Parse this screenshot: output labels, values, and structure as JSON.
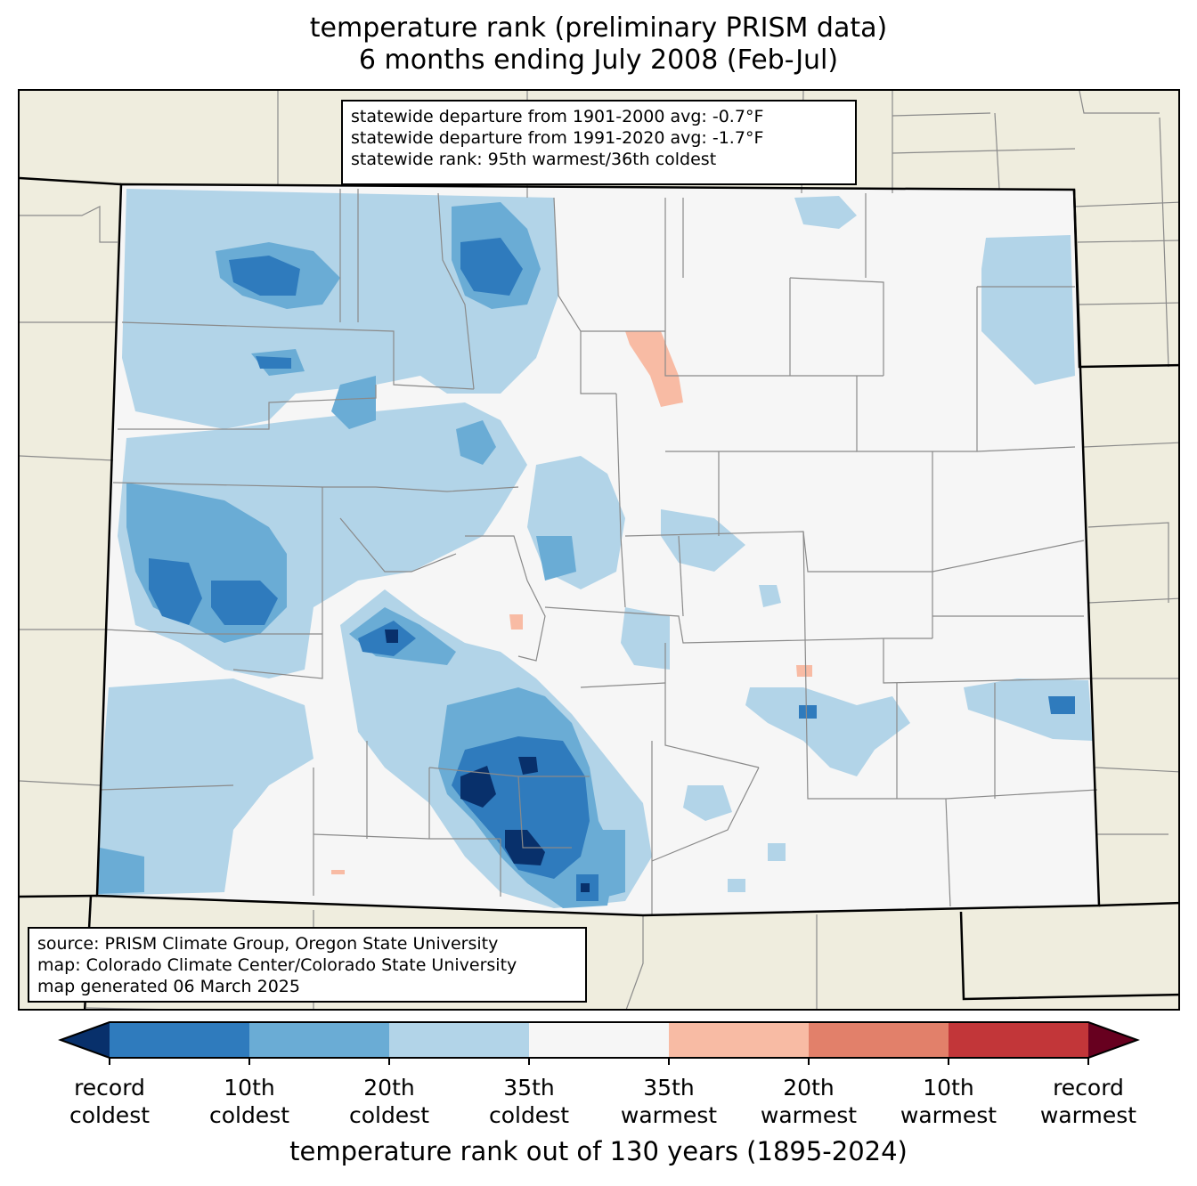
{
  "title": {
    "line1": "temperature rank (preliminary PRISM data)",
    "line2": "6 months ending July 2008 (Feb-Jul)"
  },
  "stats": {
    "line1": "statewide departure from 1901-2000 avg: -0.7°F",
    "line2": "statewide departure from 1991-2020 avg: -1.7°F",
    "line3": "statewide rank: 95th warmest/36th coldest"
  },
  "source": {
    "line1": "source: PRISM Climate Group, Oregon State University",
    "line2": "map: Colorado Climate Center/Colorado State University",
    "line3": "map generated 06 March 2025"
  },
  "colorbar": {
    "label": "temperature rank out of 130 years (1895-2024)",
    "colors": [
      "#08306b",
      "#2f7bbd",
      "#6aacd5",
      "#b2d4e8",
      "#f6f6f6",
      "#f8bba4",
      "#e2806a",
      "#c23639",
      "#67001f"
    ],
    "ticks": [
      {
        "l1": "record",
        "l2": "coldest"
      },
      {
        "l1": "10th",
        "l2": "coldest"
      },
      {
        "l1": "20th",
        "l2": "coldest"
      },
      {
        "l1": "35th",
        "l2": "coldest"
      },
      {
        "l1": "35th",
        "l2": "warmest"
      },
      {
        "l1": "20th",
        "l2": "warmest"
      },
      {
        "l1": "10th",
        "l2": "warmest"
      },
      {
        "l1": "record",
        "l2": "warmest"
      }
    ]
  },
  "map": {
    "land_color": "#efedde",
    "state_line_color": "#000000",
    "county_line_color": "#8a8a8a"
  }
}
